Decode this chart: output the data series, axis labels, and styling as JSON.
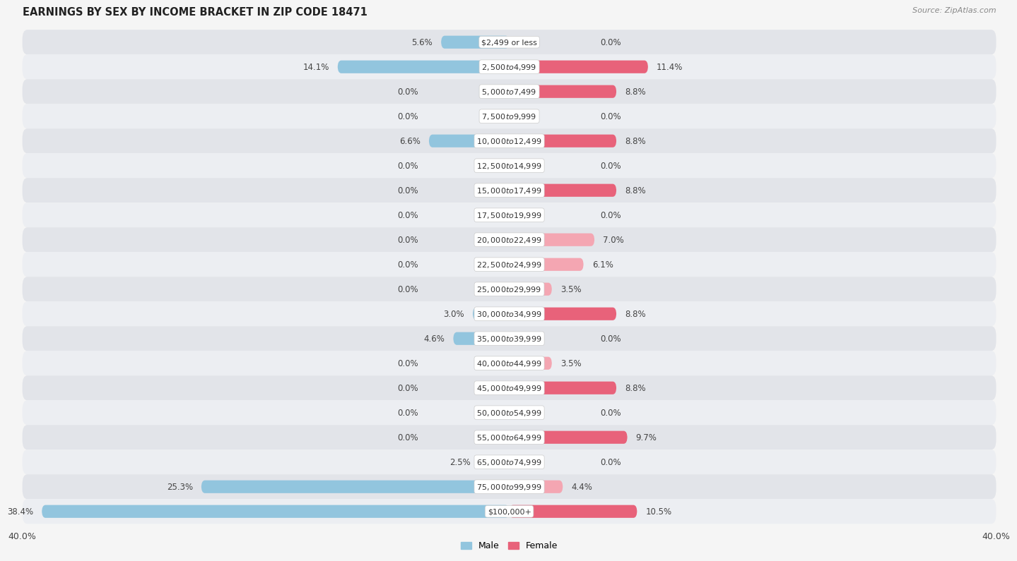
{
  "title": "EARNINGS BY SEX BY INCOME BRACKET IN ZIP CODE 18471",
  "source": "Source: ZipAtlas.com",
  "categories": [
    "$2,499 or less",
    "$2,500 to $4,999",
    "$5,000 to $7,499",
    "$7,500 to $9,999",
    "$10,000 to $12,499",
    "$12,500 to $14,999",
    "$15,000 to $17,499",
    "$17,500 to $19,999",
    "$20,000 to $22,499",
    "$22,500 to $24,999",
    "$25,000 to $29,999",
    "$30,000 to $34,999",
    "$35,000 to $39,999",
    "$40,000 to $44,999",
    "$45,000 to $49,999",
    "$50,000 to $54,999",
    "$55,000 to $64,999",
    "$65,000 to $74,999",
    "$75,000 to $99,999",
    "$100,000+"
  ],
  "male_values": [
    5.6,
    14.1,
    0.0,
    0.0,
    6.6,
    0.0,
    0.0,
    0.0,
    0.0,
    0.0,
    0.0,
    3.0,
    4.6,
    0.0,
    0.0,
    0.0,
    0.0,
    2.5,
    25.3,
    38.4
  ],
  "female_values": [
    0.0,
    11.4,
    8.8,
    0.0,
    8.8,
    0.0,
    8.8,
    0.0,
    7.0,
    6.1,
    3.5,
    8.8,
    0.0,
    3.5,
    8.8,
    0.0,
    9.7,
    0.0,
    4.4,
    10.5
  ],
  "male_color": "#92c5de",
  "female_color_light": "#f4a6b2",
  "female_color_dark": "#e8627a",
  "male_label": "Male",
  "female_label": "Female",
  "xlim": 40.0,
  "bg_color": "#f5f5f5",
  "row_bg_even": "#e8eaed",
  "row_bg_odd": "#f0f2f5",
  "title_fontsize": 10.5,
  "label_fontsize": 8.0,
  "value_fontsize": 8.5
}
